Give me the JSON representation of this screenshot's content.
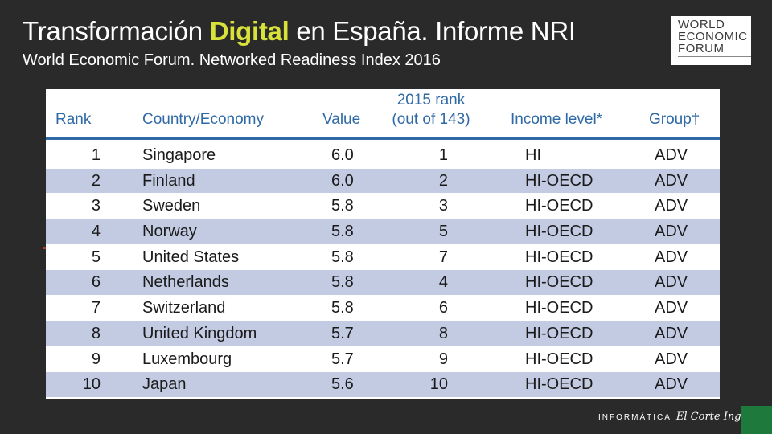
{
  "header": {
    "title_part1": "Transformación ",
    "title_highlight": "Digital",
    "title_part2": " en España. Informe NRI",
    "subtitle": "World Economic Forum. Networked Readiness Index 2016"
  },
  "logo": {
    "line1": "WORLD",
    "line2": "ECONOMIC",
    "line3": "FORUM"
  },
  "table": {
    "headers": {
      "rank": "Rank",
      "country": "Country/Economy",
      "value": "Value",
      "rank2015_line1": "2015 rank",
      "rank2015_line2": "(out of 143)",
      "income": "Income level*",
      "group": "Group†"
    },
    "rows": [
      {
        "rank": "1",
        "country": "Singapore",
        "value": "6.0",
        "rank2015": "1",
        "income": "HI",
        "group": "ADV"
      },
      {
        "rank": "2",
        "country": "Finland",
        "value": "6.0",
        "rank2015": "2",
        "income": "HI-OECD",
        "group": "ADV"
      },
      {
        "rank": "3",
        "country": "Sweden",
        "value": "5.8",
        "rank2015": "3",
        "income": "HI-OECD",
        "group": "ADV"
      },
      {
        "rank": "4",
        "country": "Norway",
        "value": "5.8",
        "rank2015": "5",
        "income": "HI-OECD",
        "group": "ADV"
      },
      {
        "rank": "5",
        "country": "United States",
        "value": "5.8",
        "rank2015": "7",
        "income": "HI-OECD",
        "group": "ADV"
      },
      {
        "rank": "6",
        "country": "Netherlands",
        "value": "5.8",
        "rank2015": "4",
        "income": "HI-OECD",
        "group": "ADV"
      },
      {
        "rank": "7",
        "country": "Switzerland",
        "value": "5.8",
        "rank2015": "6",
        "income": "HI-OECD",
        "group": "ADV"
      },
      {
        "rank": "8",
        "country": "United Kingdom",
        "value": "5.7",
        "rank2015": "8",
        "income": "HI-OECD",
        "group": "ADV"
      },
      {
        "rank": "9",
        "country": "Luxembourg",
        "value": "5.7",
        "rank2015": "9",
        "income": "HI-OECD",
        "group": "ADV"
      },
      {
        "rank": "10",
        "country": "Japan",
        "value": "5.6",
        "rank2015": "10",
        "income": "HI-OECD",
        "group": "ADV"
      }
    ]
  },
  "footer": {
    "brand_text": "INFORMÁTICA",
    "brand_script": "El Corte Inglés"
  },
  "colors": {
    "background": "#2a2a2a",
    "highlight": "#d8e23a",
    "header_blue": "#2f6aa6",
    "row_alt": "#c3cbe3",
    "brand_green": "#1e7a3c"
  }
}
